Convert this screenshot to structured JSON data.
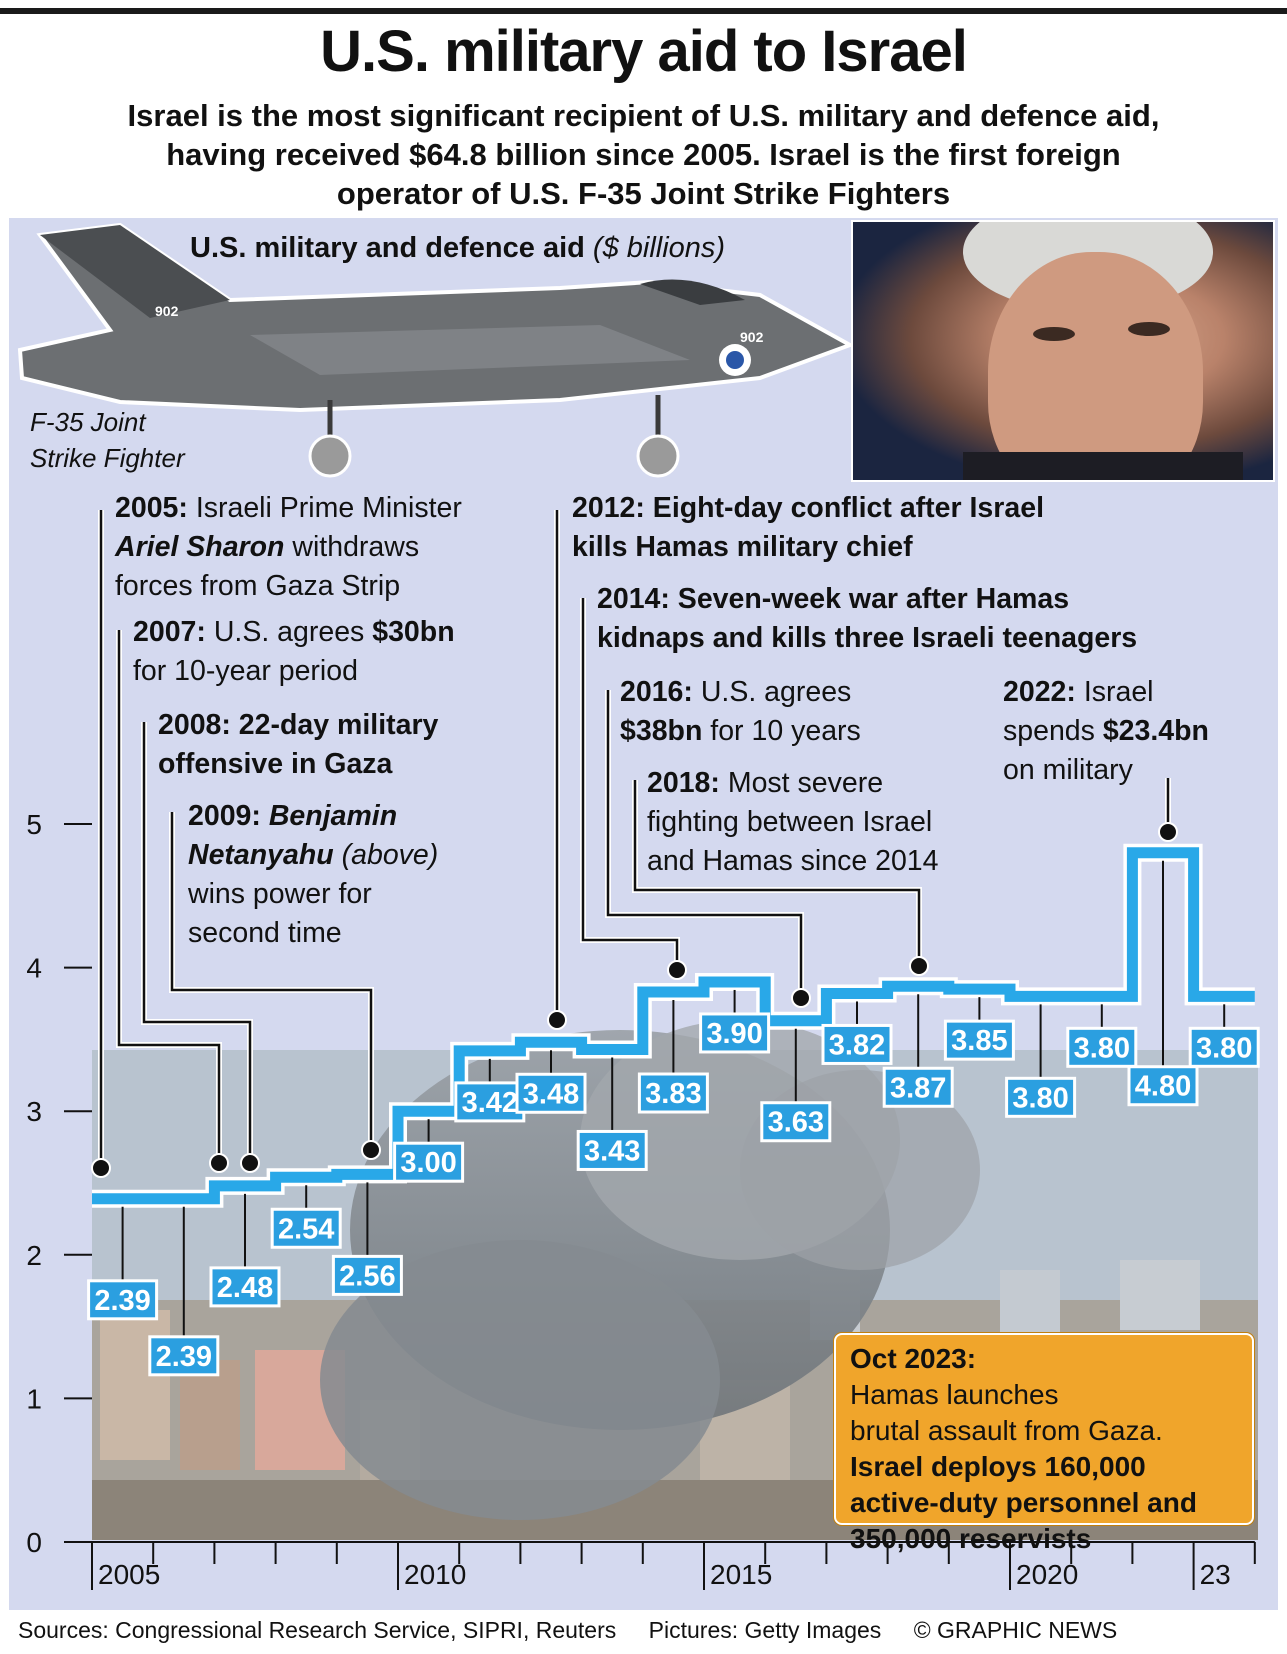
{
  "header": {
    "title": "U.S. military aid to Israel",
    "subtitle_lines": [
      "Israel is the most significant recipient of U.S. military and defence aid,",
      "having received $64.8 billion since 2005. Israel is the first foreign",
      "operator of U.S. F-35 Joint Strike Fighters"
    ]
  },
  "chart_heading": {
    "text": "U.S. military and defence aid",
    "unit": "($ billions)"
  },
  "fighter": {
    "caption_lines": [
      "F-35 Joint",
      "Strike Fighter"
    ],
    "tail_number": "902"
  },
  "colors": {
    "panel": "#d4d9ef",
    "step_line": "#29a8e8",
    "label_box": "#2b9fe0",
    "callout": "#f0a52b"
  },
  "chart_data": {
    "type": "line",
    "step": true,
    "title": "U.S. military and defence aid",
    "ylabel": "($ billions)",
    "ylim": [
      0,
      5
    ],
    "yticks": [
      "0",
      "1",
      "2",
      "3",
      "4",
      "5"
    ],
    "xlim": [
      2005,
      2024
    ],
    "xtick_labels": [
      {
        "year": 2005,
        "label": "2005"
      },
      {
        "year": 2010,
        "label": "2010"
      },
      {
        "year": 2015,
        "label": "2015"
      },
      {
        "year": 2020,
        "label": "2020"
      },
      {
        "year": 2023,
        "label": "23"
      }
    ],
    "grid": false,
    "x": [
      2005,
      2006,
      2007,
      2008,
      2009,
      2010,
      2011,
      2012,
      2013,
      2014,
      2015,
      2016,
      2017,
      2018,
      2019,
      2020,
      2021,
      2022,
      2023
    ],
    "values": [
      2.39,
      2.39,
      2.48,
      2.54,
      2.56,
      3.0,
      3.42,
      3.48,
      3.43,
      3.83,
      3.9,
      3.63,
      3.82,
      3.87,
      3.85,
      3.8,
      3.8,
      4.8,
      3.8
    ],
    "value_labels": [
      "2.39",
      "2.39",
      "2.48",
      "2.54",
      "2.56",
      "3.00",
      "3.42",
      "3.48",
      "3.43",
      "3.83",
      "3.90",
      "3.63",
      "3.82",
      "3.87",
      "3.85",
      "3.80",
      "3.80",
      "4.80",
      "3.80"
    ]
  },
  "annotations": {
    "a2005": {
      "year": "2005:",
      "l1": " Israeli Prime Minister",
      "name": "Ariel Sharon",
      "l2": " withdraws",
      "l3": "forces from Gaza Strip"
    },
    "a2007": {
      "year": "2007:",
      "l1a": " U.S. agrees ",
      "amount": "$30bn",
      "l2": "for 10-year period"
    },
    "a2008": {
      "l1": "2008: 22-day military",
      "l2": "offensive in Gaza"
    },
    "a2009": {
      "year": "2009:",
      "name1": "Benjamin",
      "name2": "Netanyahu",
      "paren": " (above)",
      "l3": "wins power for",
      "l4": "second time"
    },
    "a2012": {
      "l1": "2012: Eight-day conflict after Israel",
      "l2": "kills Hamas military chief"
    },
    "a2014": {
      "l1": "2014: Seven-week war after Hamas",
      "l2": "kidnaps and kills three Israeli teenagers"
    },
    "a2016": {
      "year": "2016:",
      "l1": " U.S. agrees",
      "amount": "$38bn",
      "l2": " for 10 years"
    },
    "a2018": {
      "year": "2018:",
      "l1": " Most severe",
      "l2": "fighting between Israel",
      "l3": "and Hamas since 2014"
    },
    "a2022": {
      "year": "2022:",
      "l1": " Israel",
      "l2a": "spends ",
      "amount": "$23.4bn",
      "l3": "on military"
    }
  },
  "callout": {
    "year": "Oct 2023:",
    "l1": " Hamas launches",
    "l2": "brutal assault from Gaza.",
    "b1": "Israel deploys 160,000",
    "b2": "active-duty personnel and",
    "b3": "350,000 reservists"
  },
  "footer": {
    "sources": "Sources: Congressional Research Service, SIPRI, Reuters",
    "pictures": "Pictures: Getty Images",
    "credit": "© GRAPHIC NEWS"
  }
}
